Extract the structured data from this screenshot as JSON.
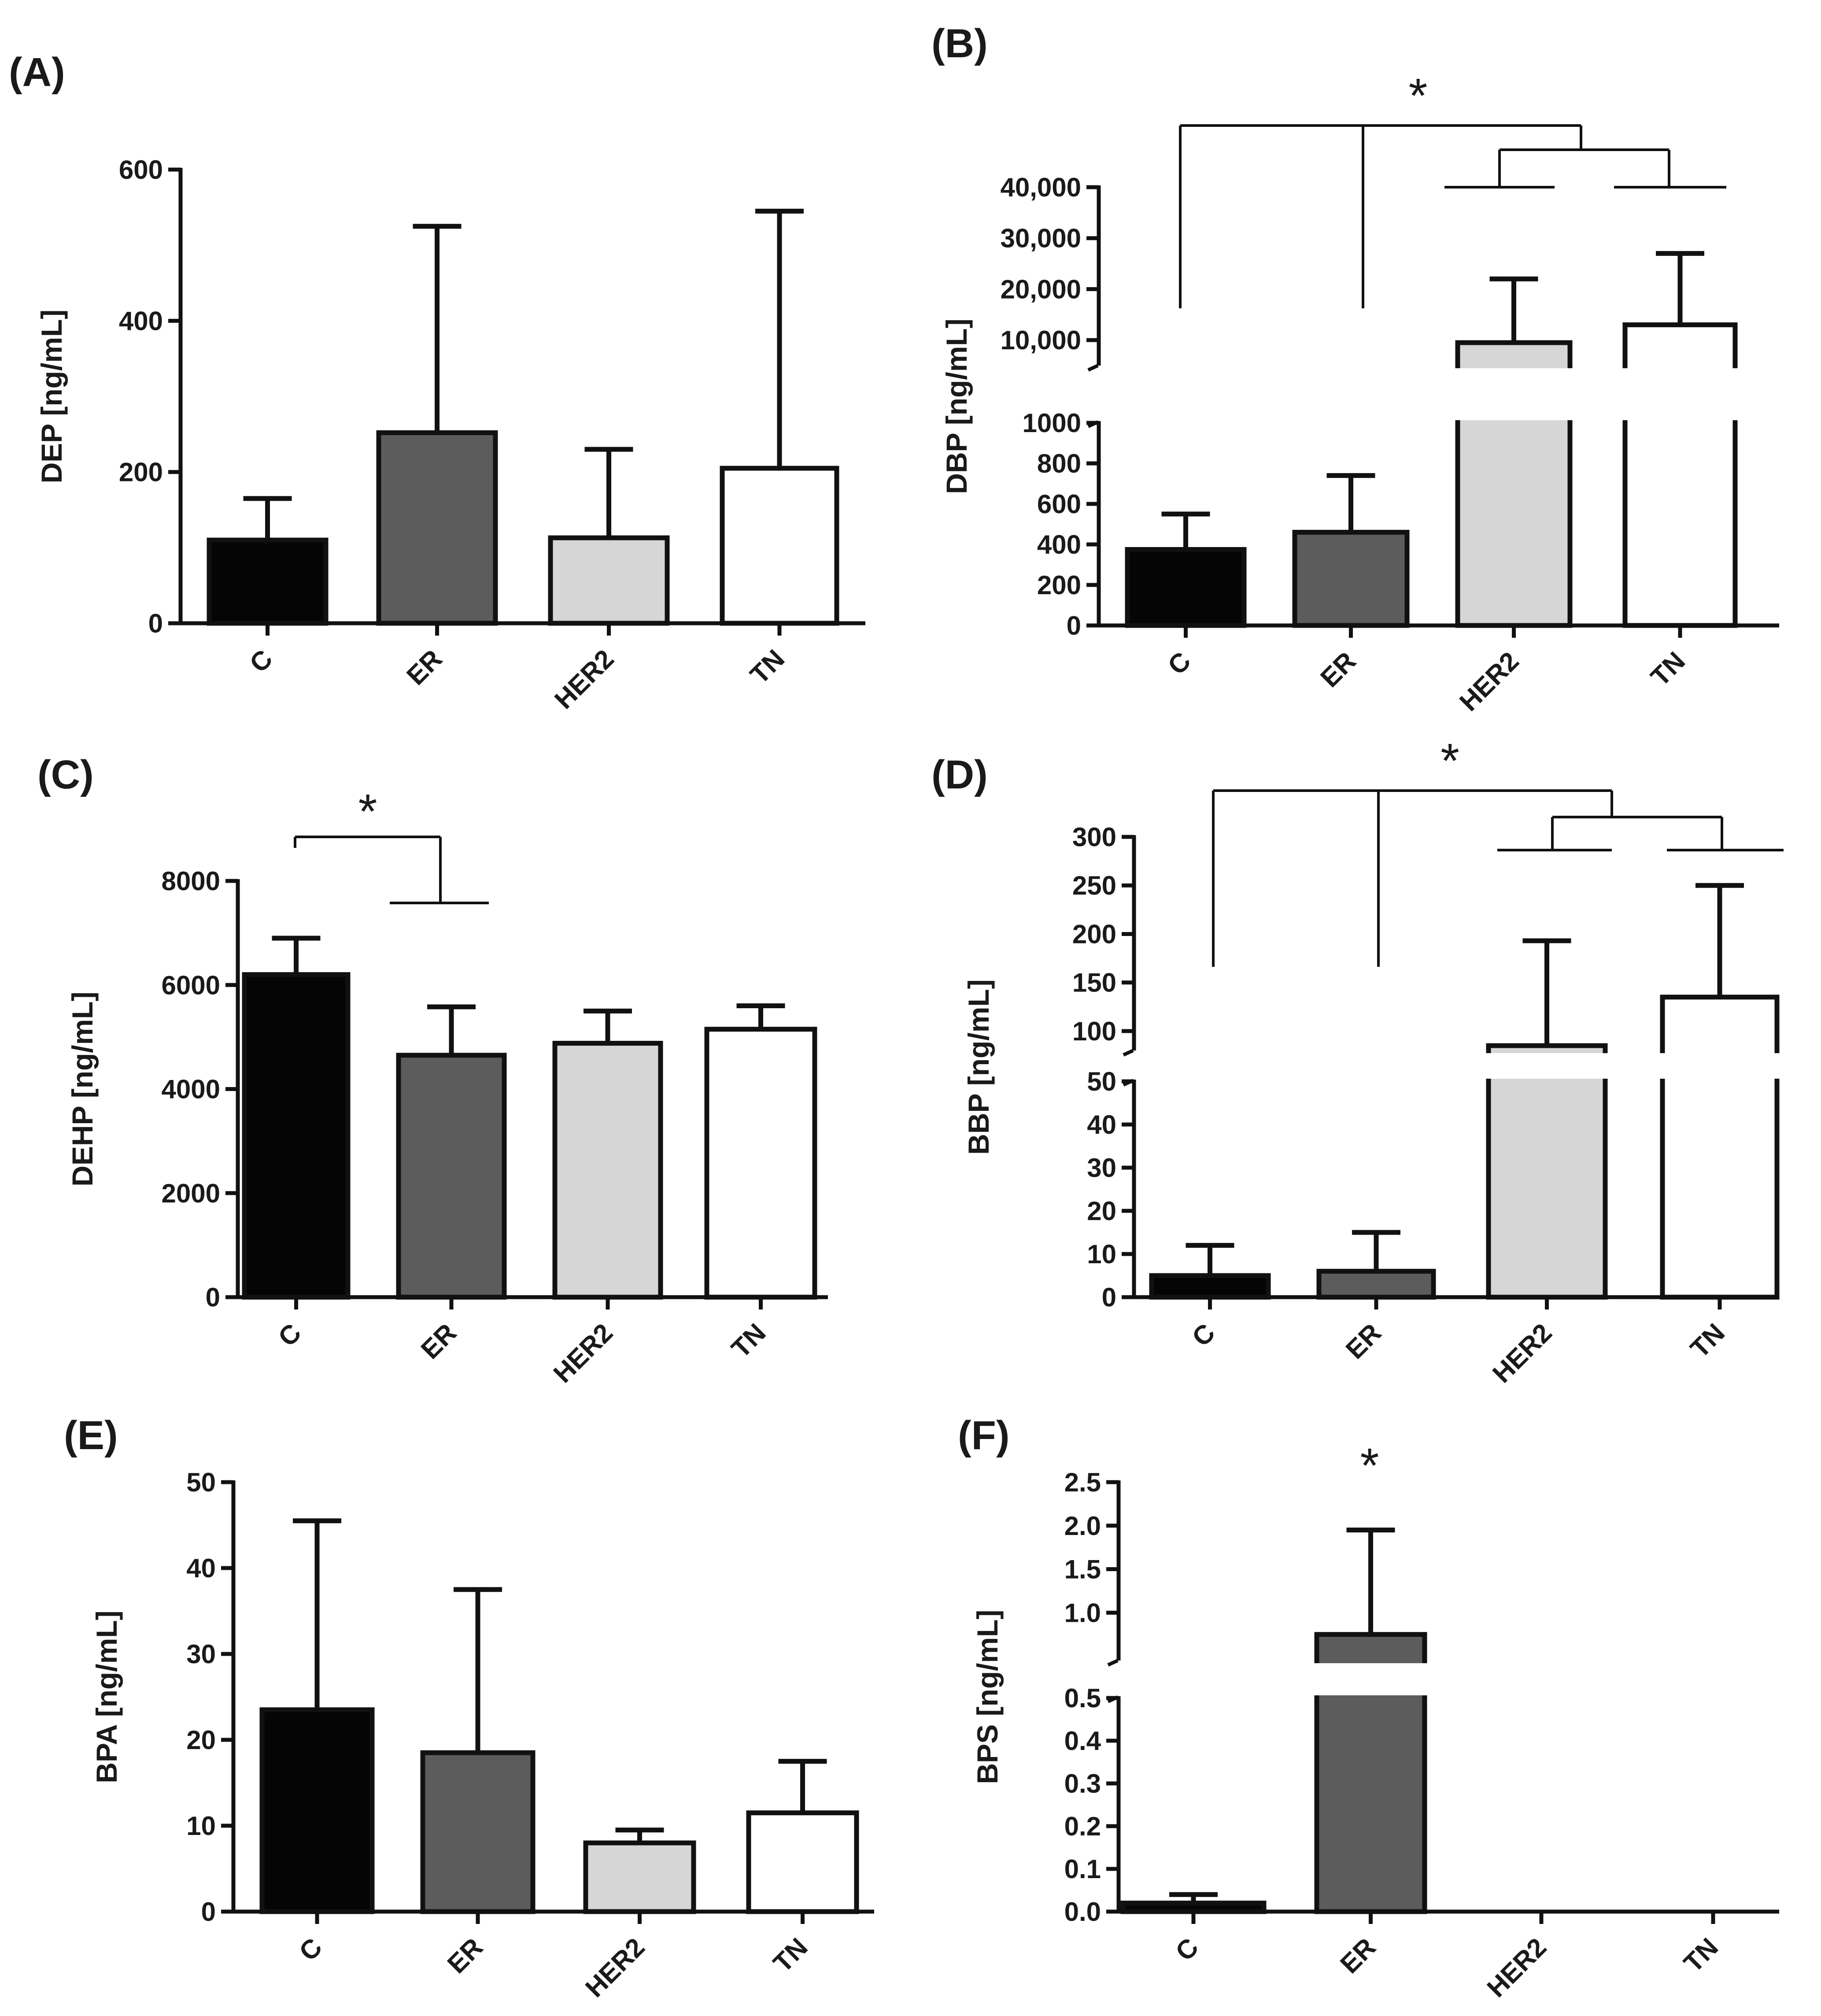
{
  "chart_data": [
    {
      "panel": "(A)",
      "type": "bar",
      "ylabel": "DEP [ng/mL]",
      "categories": [
        "C",
        "ER",
        "HER2",
        "TN"
      ],
      "values": [
        110,
        252,
        113,
        205
      ],
      "errors": [
        165,
        525,
        230,
        545
      ],
      "colors": [
        "#050505",
        "#5c5c5c",
        "#d6d6d6",
        "#ffffff"
      ],
      "ylim": [
        0,
        600
      ],
      "yticks": [
        0,
        200,
        400,
        600
      ],
      "ytick_labels": [
        "0",
        "200",
        "400",
        "600"
      ]
    },
    {
      "panel": "(B)",
      "type": "bar",
      "ylabel": "DBP [ng/mL]",
      "categories": [
        "C",
        "ER",
        "HER2",
        "TN"
      ],
      "values": [
        375,
        460,
        9500,
        13000
      ],
      "errors": [
        550,
        740,
        22000,
        27000
      ],
      "colors": [
        "#050505",
        "#5c5c5c",
        "#d6d6d6",
        "#ffffff"
      ],
      "broken_axis": {
        "lower": {
          "range": [
            0,
            1000
          ],
          "ticks": [
            0,
            200,
            400,
            600,
            800,
            1000
          ],
          "labels": [
            "0",
            "200",
            "400",
            "600",
            "800",
            "1000"
          ]
        },
        "upper": {
          "range": [
            5000,
            40000
          ],
          "ticks": [
            10000,
            20000,
            30000,
            40000
          ],
          "labels": [
            "10,000",
            "20,000",
            "30,000",
            "40,000"
          ]
        }
      },
      "annotation": "*"
    },
    {
      "panel": "(C)",
      "type": "bar",
      "ylabel": "DEHP [ng/mL]",
      "categories": [
        "C",
        "ER",
        "HER2",
        "TN"
      ],
      "values": [
        6200,
        4650,
        4880,
        5150
      ],
      "errors": [
        6900,
        5580,
        5500,
        5600
      ],
      "colors": [
        "#050505",
        "#5c5c5c",
        "#d6d6d6",
        "#ffffff"
      ],
      "ylim": [
        0,
        8000
      ],
      "yticks": [
        0,
        2000,
        4000,
        6000,
        8000
      ],
      "ytick_labels": [
        "0",
        "2000",
        "4000",
        "6000",
        "8000"
      ],
      "annotation": "*"
    },
    {
      "panel": "(D)",
      "type": "bar",
      "ylabel": "BBP [ng/mL]",
      "categories": [
        "C",
        "ER",
        "HER2",
        "TN"
      ],
      "values": [
        5,
        6,
        85,
        135
      ],
      "errors": [
        12,
        15,
        193,
        250
      ],
      "colors": [
        "#050505",
        "#5c5c5c",
        "#d6d6d6",
        "#ffffff"
      ],
      "broken_axis": {
        "lower": {
          "range": [
            0,
            50
          ],
          "ticks": [
            0,
            10,
            20,
            30,
            40,
            50
          ],
          "labels": [
            "0",
            "10",
            "20",
            "30",
            "40",
            "50"
          ]
        },
        "upper": {
          "range": [
            80,
            300
          ],
          "ticks": [
            100,
            150,
            200,
            250,
            300
          ],
          "labels": [
            "100",
            "150",
            "200",
            "250",
            "300"
          ]
        }
      },
      "annotation": "*"
    },
    {
      "panel": "(E)",
      "type": "bar",
      "ylabel": "BPA [ng/mL]",
      "categories": [
        "C",
        "ER",
        "HER2",
        "TN"
      ],
      "values": [
        23.5,
        18.5,
        8,
        11.5
      ],
      "errors": [
        45.5,
        37.5,
        9.5,
        17.5
      ],
      "colors": [
        "#050505",
        "#5c5c5c",
        "#d6d6d6",
        "#ffffff"
      ],
      "ylim": [
        0,
        50
      ],
      "yticks": [
        0,
        10,
        20,
        30,
        40,
        50
      ],
      "ytick_labels": [
        "0",
        "10",
        "20",
        "30",
        "40",
        "50"
      ]
    },
    {
      "panel": "(F)",
      "type": "bar",
      "ylabel": "BPS [ng/mL]",
      "categories": [
        "C",
        "ER",
        "HER2",
        "TN"
      ],
      "values": [
        0.02,
        0.75,
        0,
        0
      ],
      "errors": [
        0.04,
        1.95,
        0,
        0
      ],
      "colors": [
        "#050505",
        "#5c5c5c",
        "#d6d6d6",
        "#ffffff"
      ],
      "broken_axis": {
        "lower": {
          "range": [
            0,
            0.5
          ],
          "ticks": [
            0,
            0.1,
            0.2,
            0.3,
            0.4,
            0.5
          ],
          "labels": [
            "0.0",
            "0.1",
            "0.2",
            "0.3",
            "0.4",
            "0.5"
          ]
        },
        "upper": {
          "range": [
            0.45,
            2.5
          ],
          "ticks": [
            0.5,
            1.0,
            1.5,
            2.0,
            2.5
          ],
          "labels": [
            "0.5",
            "1.0",
            "1.5",
            "2.0",
            "2.5"
          ]
        }
      },
      "annotation": "*"
    }
  ]
}
